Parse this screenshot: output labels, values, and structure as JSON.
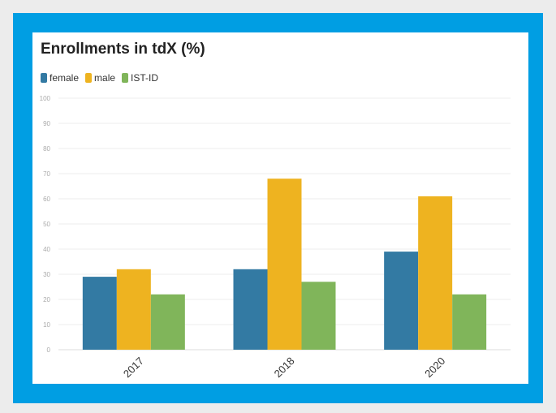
{
  "chart_data": {
    "type": "bar",
    "title": "Enrollments in tdX (%)",
    "categories": [
      "2017",
      "2018",
      "2020"
    ],
    "series": [
      {
        "name": "female",
        "color": "#337aa3",
        "values": [
          29,
          32,
          39
        ]
      },
      {
        "name": "male",
        "color": "#eeb320",
        "values": [
          32,
          68,
          61
        ]
      },
      {
        "name": "IST-ID",
        "color": "#80b55a",
        "values": [
          22,
          27,
          22
        ]
      }
    ],
    "ylim": [
      0,
      100
    ],
    "yticks": [
      0,
      10,
      20,
      30,
      40,
      50,
      60,
      70,
      80,
      90,
      100
    ],
    "grid": true,
    "legend_position": "top-left",
    "xlabel": "",
    "ylabel": ""
  },
  "colors": {
    "frame": "#009ee3",
    "background": "#ececec",
    "card": "#ffffff"
  }
}
